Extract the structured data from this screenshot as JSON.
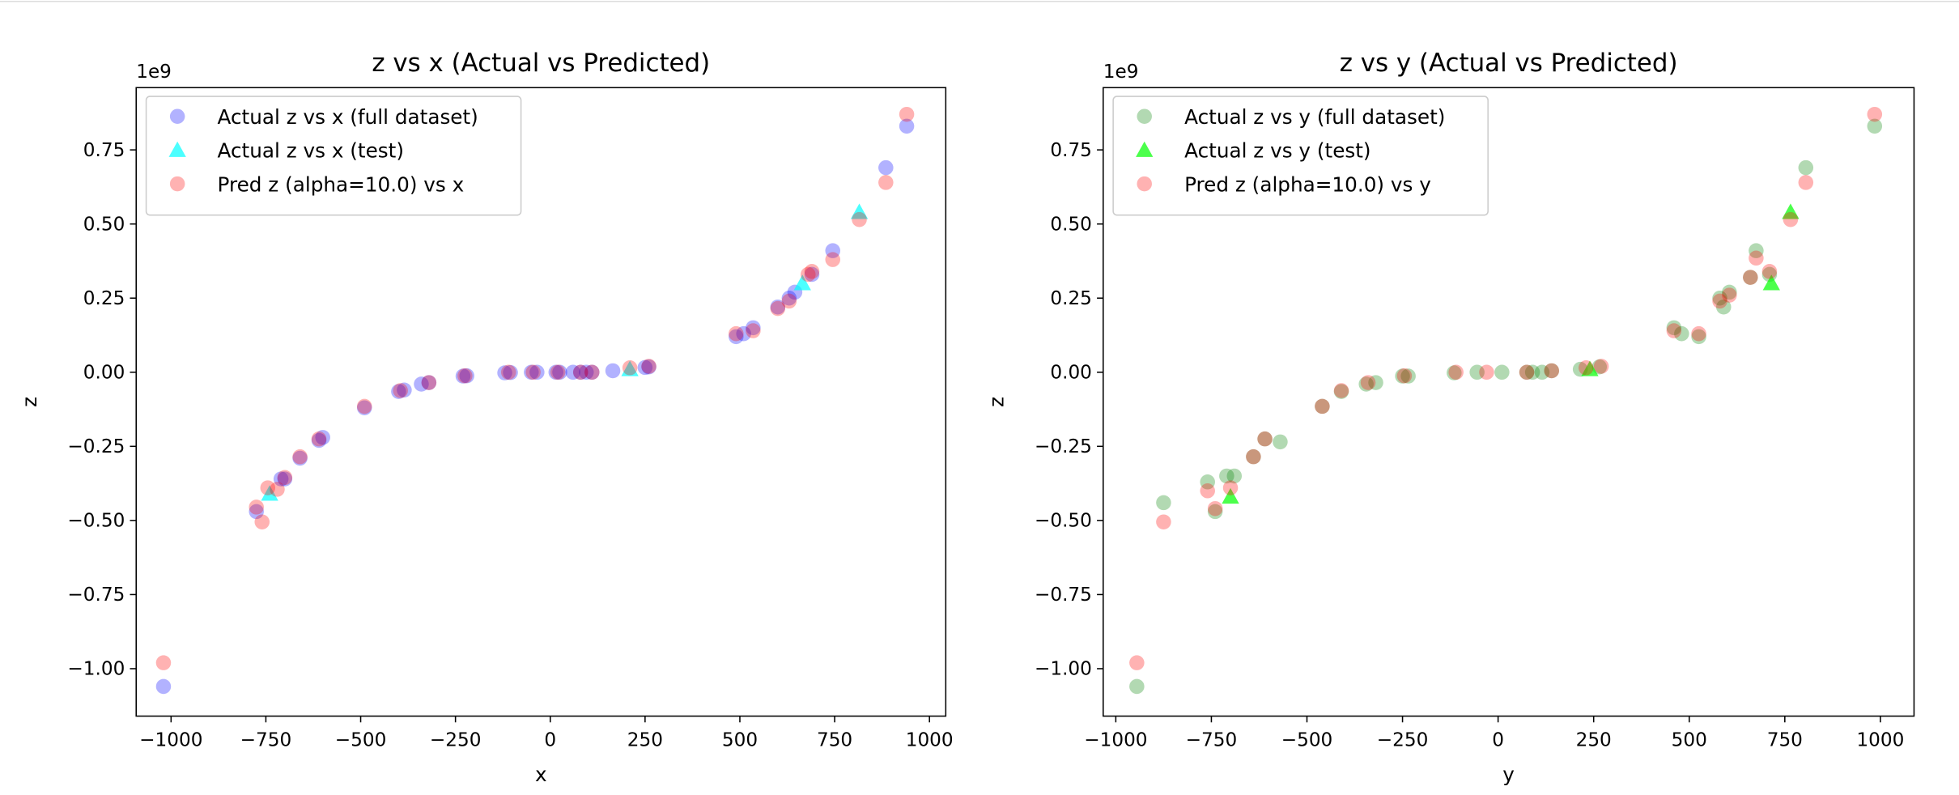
{
  "chart_data": [
    {
      "type": "scatter",
      "title": "z vs x (Actual vs Predicted)",
      "x_label": "x",
      "y_label": "z",
      "offset_text": "1e9",
      "xlim": [
        -1092,
        1043
      ],
      "ylim": [
        -1.16,
        0.96
      ],
      "xticks": [
        {
          "value": -1000,
          "label": "−1000"
        },
        {
          "value": -750,
          "label": "−750"
        },
        {
          "value": -500,
          "label": "−500"
        },
        {
          "value": -250,
          "label": "−250"
        },
        0,
        250,
        500,
        750,
        1000
      ],
      "yticks": [
        {
          "value": -1.0,
          "label": "−1.00"
        },
        {
          "value": -0.75,
          "label": "−0.75"
        },
        {
          "value": -0.5,
          "label": "−0.50"
        },
        {
          "value": -0.25,
          "label": "−0.25"
        },
        {
          "value": 0,
          "label": "0.00"
        },
        0.25,
        {
          "value": 0.5,
          "label": "0.50"
        },
        0.75
      ],
      "legend": "upper left",
      "series": [
        {
          "name": "Actual z vs x (full dataset)",
          "color": "#0000ff",
          "marker": "o",
          "alpha": 0.3,
          "x": [
            -1020,
            -775,
            -710,
            -700,
            -660,
            -610,
            -600,
            -490,
            -400,
            -385,
            -340,
            -320,
            -230,
            -220,
            -120,
            -105,
            -50,
            -35,
            15,
            25,
            60,
            80,
            95,
            110,
            165,
            250,
            260,
            490,
            510,
            535,
            600,
            630,
            645,
            690,
            745,
            885,
            940
          ],
          "values": [
            -1.06,
            -0.47,
            -0.36,
            -0.36,
            -0.29,
            -0.23,
            -0.22,
            -0.12,
            -0.065,
            -0.06,
            -0.04,
            -0.035,
            -0.013,
            -0.012,
            -0.002,
            -0.001,
            0,
            0,
            0,
            0,
            0,
            0,
            0,
            0,
            0.005,
            0.016,
            0.018,
            0.12,
            0.13,
            0.15,
            0.22,
            0.25,
            0.27,
            0.33,
            0.41,
            0.69,
            0.83
          ]
        },
        {
          "name": "Actual z vs x (test)",
          "color": "#00ffff",
          "marker": "^",
          "alpha": 0.7,
          "x": [
            -740,
            210,
            665,
            815
          ],
          "values": [
            -0.41,
            0.01,
            0.3,
            0.54
          ]
        },
        {
          "name": "Pred z (alpha=10.0) vs x",
          "color": "#ff0000",
          "marker": "o",
          "alpha": 0.3,
          "x": [
            -1020,
            -775,
            -760,
            -745,
            -720,
            -700,
            -660,
            -610,
            -490,
            -395,
            -320,
            -225,
            -110,
            -45,
            20,
            80,
            110,
            210,
            260,
            490,
            535,
            600,
            630,
            680,
            690,
            745,
            815,
            885,
            940
          ],
          "values": [
            -0.98,
            -0.455,
            -0.505,
            -0.39,
            -0.395,
            -0.355,
            -0.285,
            -0.225,
            -0.115,
            -0.062,
            -0.035,
            -0.012,
            0,
            0,
            0,
            0,
            0,
            0.015,
            0.02,
            0.13,
            0.14,
            0.215,
            0.24,
            0.33,
            0.34,
            0.38,
            0.515,
            0.64,
            0.87
          ]
        }
      ]
    },
    {
      "type": "scatter",
      "title": "z vs y (Actual vs Predicted)",
      "x_label": "y",
      "y_label": "z",
      "offset_text": "1e9",
      "xlim": [
        -1033,
        1088
      ],
      "ylim": [
        -1.16,
        0.96
      ],
      "xticks": [
        {
          "value": -1000,
          "label": "−1000"
        },
        {
          "value": -750,
          "label": "−750"
        },
        {
          "value": -500,
          "label": "−500"
        },
        {
          "value": -250,
          "label": "−250"
        },
        0,
        250,
        500,
        750,
        1000
      ],
      "yticks": [
        {
          "value": -1.0,
          "label": "−1.00"
        },
        {
          "value": -0.75,
          "label": "−0.75"
        },
        {
          "value": -0.5,
          "label": "−0.50"
        },
        {
          "value": -0.25,
          "label": "−0.25"
        },
        {
          "value": 0,
          "label": "0.00"
        },
        0.25,
        {
          "value": 0.5,
          "label": "0.50"
        },
        0.75
      ],
      "legend": "upper left",
      "series": [
        {
          "name": "Actual z vs y (full dataset)",
          "color": "#008000",
          "marker": "o",
          "alpha": 0.3,
          "x": [
            -945,
            -875,
            -760,
            -740,
            -710,
            -690,
            -640,
            -610,
            -570,
            -460,
            -410,
            -345,
            -320,
            -250,
            -235,
            -115,
            -55,
            10,
            75,
            90,
            115,
            140,
            215,
            265,
            460,
            480,
            525,
            580,
            590,
            605,
            660,
            675,
            710,
            805,
            985
          ],
          "values": [
            -1.06,
            -0.44,
            -0.37,
            -0.47,
            -0.35,
            -0.35,
            -0.285,
            -0.225,
            -0.235,
            -0.115,
            -0.065,
            -0.04,
            -0.035,
            -0.013,
            -0.013,
            -0.002,
            0,
            0,
            0,
            0,
            0,
            0.005,
            0.01,
            0.018,
            0.15,
            0.13,
            0.12,
            0.25,
            0.22,
            0.27,
            0.32,
            0.41,
            0.33,
            0.69,
            0.83
          ]
        },
        {
          "name": "Actual z vs y (test)",
          "color": "#00ff00",
          "marker": "^",
          "alpha": 0.7,
          "x": [
            -700,
            240,
            715,
            765
          ],
          "values": [
            -0.42,
            0.01,
            0.3,
            0.54
          ]
        },
        {
          "name": "Pred z (alpha=10.0) vs y",
          "color": "#ff0000",
          "marker": "o",
          "alpha": 0.3,
          "x": [
            -945,
            -875,
            -760,
            -740,
            -700,
            -640,
            -610,
            -460,
            -410,
            -340,
            -245,
            -110,
            -30,
            75,
            140,
            230,
            270,
            460,
            525,
            580,
            605,
            660,
            675,
            710,
            765,
            805,
            985
          ],
          "values": [
            -0.98,
            -0.505,
            -0.4,
            -0.46,
            -0.39,
            -0.285,
            -0.225,
            -0.115,
            -0.062,
            -0.035,
            -0.012,
            0,
            0,
            0,
            0.005,
            0.015,
            0.02,
            0.14,
            0.13,
            0.24,
            0.26,
            0.32,
            0.385,
            0.34,
            0.515,
            0.64,
            0.87
          ]
        }
      ]
    }
  ]
}
